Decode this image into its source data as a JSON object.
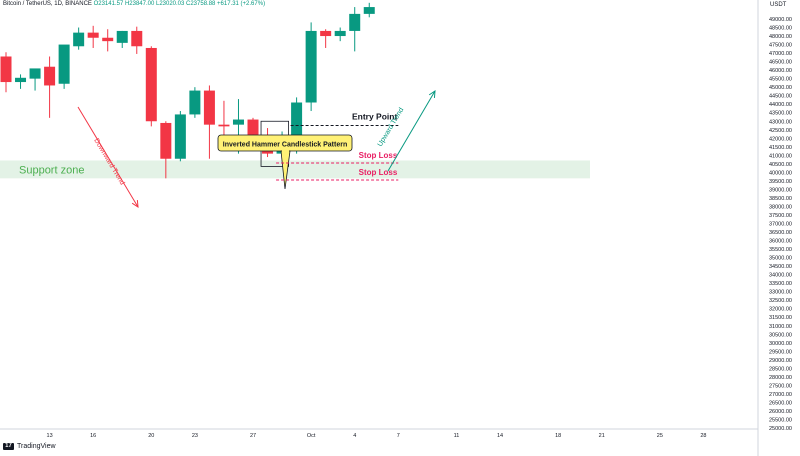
{
  "header": {
    "symbol": "Bitcoin / TetherUS, 1D, BINANCE",
    "ohlc": "O23141.57 H23847.00 L23020.03 C23758.88 +617.31 (+2.67%)"
  },
  "axis": {
    "currency": "USDT",
    "y_ticks": [
      "49000.00",
      "48500.00",
      "48000.00",
      "47500.00",
      "47000.00",
      "46500.00",
      "46000.00",
      "45500.00",
      "45000.00",
      "44500.00",
      "44000.00",
      "43500.00",
      "43000.00",
      "42500.00",
      "42000.00",
      "41500.00",
      "41000.00",
      "40500.00",
      "40000.00",
      "39500.00",
      "39000.00",
      "38500.00",
      "38000.00",
      "37500.00",
      "37000.00",
      "36500.00",
      "36000.00",
      "35500.00",
      "35000.00",
      "34500.00",
      "34000.00",
      "33500.00",
      "33000.00",
      "32500.00",
      "32000.00",
      "31500.00",
      "31000.00",
      "30500.00",
      "30000.00",
      "29500.00",
      "29000.00",
      "28500.00",
      "28000.00",
      "27500.00",
      "27000.00",
      "26500.00",
      "26000.00",
      "25500.00",
      "25000.00"
    ],
    "x_ticks": [
      {
        "i": 3,
        "label": "13"
      },
      {
        "i": 6,
        "label": "16"
      },
      {
        "i": 10,
        "label": "20"
      },
      {
        "i": 13,
        "label": "23"
      },
      {
        "i": 17,
        "label": "27"
      },
      {
        "i": 21,
        "label": "Oct"
      },
      {
        "i": 24,
        "label": "4"
      },
      {
        "i": 27,
        "label": "7"
      },
      {
        "i": 31,
        "label": "11"
      },
      {
        "i": 34,
        "label": "14"
      },
      {
        "i": 38,
        "label": "18"
      },
      {
        "i": 41,
        "label": "21"
      },
      {
        "i": 45,
        "label": "25"
      },
      {
        "i": 48,
        "label": "28"
      }
    ]
  },
  "colors": {
    "up": "#089981",
    "down": "#f23645",
    "support": "#e3f2e6",
    "support_text": "#4caf50",
    "stop": "#e91e63",
    "downtrend": "#f23645",
    "uptrend": "#089981",
    "callout": "#fff176"
  },
  "chart_data": {
    "type": "candlestick",
    "ylim": [
      25000,
      49500
    ],
    "candles": [
      {
        "o": 46800,
        "h": 47050,
        "l": 44700,
        "c": 45300
      },
      {
        "o": 45300,
        "h": 45750,
        "l": 44900,
        "c": 45550
      },
      {
        "o": 45500,
        "h": 46000,
        "l": 44800,
        "c": 46100
      },
      {
        "o": 46200,
        "h": 46800,
        "l": 43200,
        "c": 45100
      },
      {
        "o": 45200,
        "h": 47300,
        "l": 44900,
        "c": 47500
      },
      {
        "o": 47400,
        "h": 48500,
        "l": 47200,
        "c": 48200
      },
      {
        "o": 48200,
        "h": 48600,
        "l": 47300,
        "c": 47900
      },
      {
        "o": 47900,
        "h": 48400,
        "l": 47100,
        "c": 47700
      },
      {
        "o": 47600,
        "h": 48300,
        "l": 47300,
        "c": 48300
      },
      {
        "o": 48300,
        "h": 48550,
        "l": 46950,
        "c": 47400
      },
      {
        "o": 47300,
        "h": 47400,
        "l": 42700,
        "c": 43000
      },
      {
        "o": 42900,
        "h": 43000,
        "l": 39650,
        "c": 40800
      },
      {
        "o": 40800,
        "h": 43600,
        "l": 40650,
        "c": 43400
      },
      {
        "o": 43400,
        "h": 45000,
        "l": 43200,
        "c": 44800
      },
      {
        "o": 44800,
        "h": 45100,
        "l": 40800,
        "c": 42800
      },
      {
        "o": 42800,
        "h": 44200,
        "l": 42000,
        "c": 42700
      },
      {
        "o": 42800,
        "h": 44300,
        "l": 41100,
        "c": 43100
      },
      {
        "o": 43100,
        "h": 43200,
        "l": 41700,
        "c": 42200
      },
      {
        "o": 42200,
        "h": 42600,
        "l": 40900,
        "c": 41100
      },
      {
        "o": 41100,
        "h": 42400,
        "l": 41000,
        "c": 41500
      },
      {
        "o": 41500,
        "h": 44400,
        "l": 41100,
        "c": 44100
      },
      {
        "o": 44100,
        "h": 48800,
        "l": 43600,
        "c": 48300
      },
      {
        "o": 48300,
        "h": 48400,
        "l": 47300,
        "c": 48000
      },
      {
        "o": 48000,
        "h": 48500,
        "l": 47700,
        "c": 48300
      },
      {
        "o": 48300,
        "h": 49700,
        "l": 47100,
        "c": 49300
      },
      {
        "o": 49300,
        "h": 49950,
        "l": 49100,
        "c": 49700
      }
    ],
    "support_zone": {
      "from": 39650,
      "to": 40700,
      "label": "Support zone"
    },
    "entry": {
      "price": 42750,
      "label": "Entry Point"
    },
    "stop_losses": [
      {
        "price": 40550,
        "label": "Stop Loss"
      },
      {
        "price": 39550,
        "label": "Stop Loss"
      }
    ],
    "trend_labels": {
      "down": "Downward Trend",
      "up": "Upward Trend"
    },
    "callout": "Inverted Hammer Candlestick Pattern"
  },
  "footer": {
    "brand": "TradingView",
    "mark": "17"
  }
}
